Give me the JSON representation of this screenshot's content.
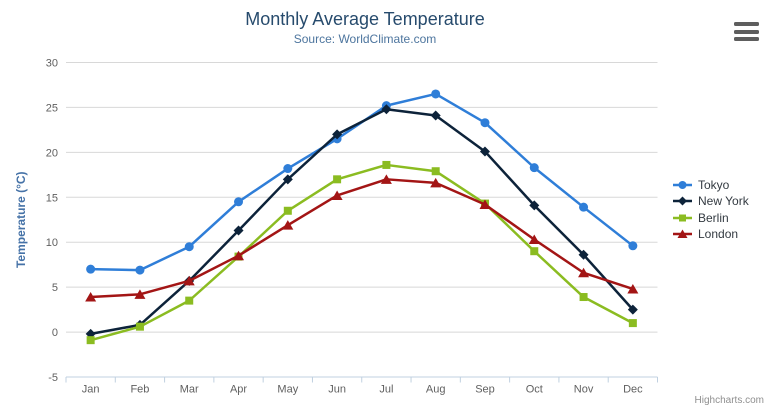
{
  "chart": {
    "credits": "Highcharts.com"
  },
  "chart_data": {
    "type": "line",
    "title": "Monthly Average Temperature",
    "subtitle": "Source: WorldClimate.com",
    "categories": [
      "Jan",
      "Feb",
      "Mar",
      "Apr",
      "May",
      "Jun",
      "Jul",
      "Aug",
      "Sep",
      "Oct",
      "Nov",
      "Dec"
    ],
    "xlabel": "",
    "ylabel": "Temperature (°C)",
    "ylim": [
      -5,
      30
    ],
    "ytick_step": 5,
    "grid": true,
    "legend_position": "right",
    "series": [
      {
        "name": "Tokyo",
        "color": "#2f7ed8",
        "marker": "circle",
        "values": [
          7.0,
          6.9,
          9.5,
          14.5,
          18.2,
          21.5,
          25.2,
          26.5,
          23.3,
          18.3,
          13.9,
          9.6
        ]
      },
      {
        "name": "New York",
        "color": "#0d233a",
        "marker": "diamond",
        "values": [
          -0.2,
          0.8,
          5.7,
          11.3,
          17.0,
          22.0,
          24.8,
          24.1,
          20.1,
          14.1,
          8.6,
          2.5
        ]
      },
      {
        "name": "Berlin",
        "color": "#8bbc21",
        "marker": "square",
        "values": [
          -0.9,
          0.6,
          3.5,
          8.4,
          13.5,
          17.0,
          18.6,
          17.9,
          14.3,
          9.0,
          3.9,
          1.0
        ]
      },
      {
        "name": "London",
        "color": "#a31515",
        "marker": "triangle",
        "values": [
          3.9,
          4.2,
          5.7,
          8.5,
          11.9,
          15.2,
          17.0,
          16.6,
          14.2,
          10.3,
          6.6,
          4.8
        ]
      }
    ]
  }
}
